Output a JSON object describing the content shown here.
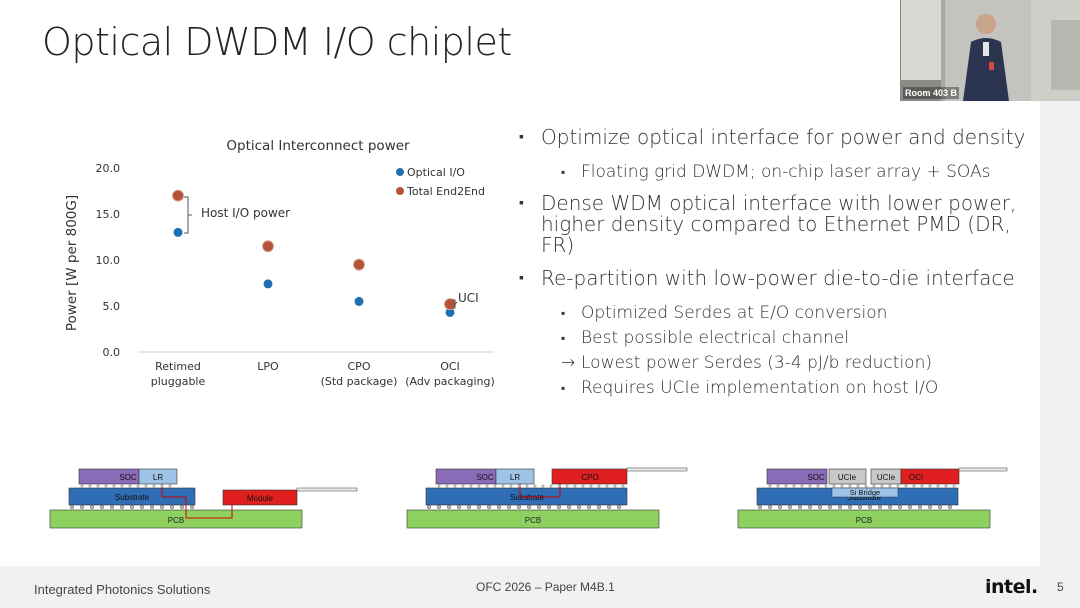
{
  "slide": {
    "title": "Optical DWDM I/O chiplet",
    "page_number": "5"
  },
  "video": {
    "room_label": "Room 403 B"
  },
  "chart_data": {
    "type": "scatter",
    "title": "Optical Interconnect power",
    "xlabel": "",
    "ylabel": "Power [W per 800G]",
    "ylim": [
      0,
      20
    ],
    "yticks": [
      "20.0",
      "15.0",
      "10.0",
      "5.0",
      "0.0"
    ],
    "categories": [
      "Retimed pluggable",
      "LPO",
      "CPO (Std package)",
      "OCI (Adv packaging)"
    ],
    "category_lines": [
      [
        "Retimed",
        "pluggable"
      ],
      [
        "LPO",
        ""
      ],
      [
        "CPO",
        "(Std package)"
      ],
      [
        "OCI",
        "(Adv packaging)"
      ]
    ],
    "series": [
      {
        "name": "Optical I/O",
        "color": "#1f6fb2",
        "values": [
          13.0,
          7.4,
          5.5,
          4.3
        ]
      },
      {
        "name": "Total End2End",
        "color": "#b5533a",
        "values": [
          17.0,
          11.5,
          9.5,
          5.2
        ]
      }
    ],
    "annotations": {
      "host_io": "Host I/O power",
      "uci": "UCI"
    },
    "grid": false,
    "legend": "top-right"
  },
  "bullets": [
    {
      "text": "Optimize optical interface for power and density",
      "sub": [
        {
          "marker": "square",
          "text": "Floating grid DWDM; on-chip laser array + SOAs"
        }
      ]
    },
    {
      "text": "Dense WDM optical interface with lower power, higher density compared to Ethernet PMD (DR, FR)",
      "sub": []
    },
    {
      "text": "Re-partition with low-power die-to-die interface",
      "sub": [
        {
          "marker": "square",
          "text": "Optimized Serdes at E/O conversion"
        },
        {
          "marker": "square",
          "text": "Best possible electrical channel"
        },
        {
          "marker": "arrow",
          "text": "Lowest power Serdes (3-4 pJ/b reduction)"
        },
        {
          "marker": "square",
          "text": "Requires UCIe implementation on host I/O"
        }
      ]
    }
  ],
  "diagrams": {
    "d1": {
      "soc": "SOC",
      "lr": "LR",
      "substrate": "Substrate",
      "module": "Module",
      "pcb": "PCB"
    },
    "d2": {
      "soc": "SOC",
      "lr": "LR",
      "cpo": "CPO",
      "substrate": "Substrate",
      "pcb": "PCB"
    },
    "d3": {
      "soc": "SOC",
      "ucie1": "UCIe",
      "ucie2": "UCIe",
      "oci": "OCI",
      "si_bridge": "Si Bridge",
      "substrate": "Substrate",
      "pcb": "PCB"
    }
  },
  "footer": {
    "left": "Integrated Photonics Solutions",
    "center": "OFC 2026 – Paper M4B.1",
    "logo": "intel."
  },
  "colors": {
    "soc": "#8a6bb8",
    "lr": "#9fc3e6",
    "substrate": "#2f6db5",
    "module": "#e02020",
    "pcb": "#8fd160",
    "ucie": "#c8c8c8"
  }
}
